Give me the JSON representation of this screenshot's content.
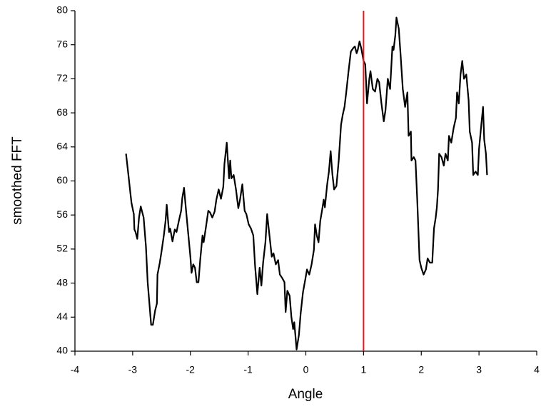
{
  "chart_data": {
    "type": "line",
    "xlabel": "Angle",
    "ylabel": "smoothed FFT",
    "xlim": [
      -4,
      4
    ],
    "xticks": [
      -4,
      -3,
      -2,
      -1,
      0,
      1,
      2,
      3,
      4
    ],
    "ylim": [
      40,
      80
    ],
    "yticks": [
      40,
      44,
      48,
      52,
      56,
      60,
      64,
      68,
      72,
      76,
      80
    ],
    "grid": false,
    "vline": {
      "x": 1,
      "color": "#e8141c"
    },
    "series": [
      {
        "color": "#000000",
        "x": [
          -3.115,
          -3.08,
          -3.04,
          -3.02,
          -2.98,
          -2.97,
          -2.95,
          -2.92,
          -2.89,
          -2.86,
          -2.81,
          -2.77,
          -2.74,
          -2.71,
          -2.68,
          -2.65,
          -2.61,
          -2.58,
          -2.57,
          -2.53,
          -2.5,
          -2.46,
          -2.43,
          -2.41,
          -2.37,
          -2.35,
          -2.31,
          -2.27,
          -2.24,
          -2.2,
          -2.16,
          -2.14,
          -2.11,
          -2.08,
          -2.04,
          -2.0,
          -1.98,
          -1.95,
          -1.92,
          -1.89,
          -1.86,
          -1.83,
          -1.79,
          -1.77,
          -1.73,
          -1.69,
          -1.66,
          -1.62,
          -1.58,
          -1.55,
          -1.51,
          -1.47,
          -1.43,
          -1.41,
          -1.37,
          -1.33,
          -1.31,
          -1.29,
          -1.25,
          -1.21,
          -1.17,
          -1.14,
          -1.1,
          -1.06,
          -1.03,
          -0.99,
          -0.95,
          -0.91,
          -0.88,
          -0.84,
          -0.8,
          -0.77,
          -0.74,
          -0.7,
          -0.67,
          -0.63,
          -0.59,
          -0.56,
          -0.52,
          -0.48,
          -0.45,
          -0.41,
          -0.37,
          -0.35,
          -0.32,
          -0.28,
          -0.25,
          -0.22,
          -0.2,
          -0.16,
          -0.12,
          -0.09,
          -0.05,
          -0.01,
          0.02,
          0.06,
          0.1,
          0.14,
          0.16,
          0.19,
          0.22,
          0.25,
          0.28,
          0.31,
          0.33,
          0.37,
          0.4,
          0.43,
          0.46,
          0.49,
          0.53,
          0.57,
          0.61,
          0.64,
          0.67,
          0.7,
          0.74,
          0.78,
          0.82,
          0.85,
          0.88,
          0.9,
          0.93,
          0.96,
          1.0,
          1.03,
          1.06,
          1.1,
          1.12,
          1.16,
          1.2,
          1.24,
          1.27,
          1.31,
          1.35,
          1.38,
          1.42,
          1.46,
          1.5,
          1.52,
          1.55,
          1.57,
          1.61,
          1.64,
          1.68,
          1.72,
          1.76,
          1.78,
          1.82,
          1.83,
          1.87,
          1.9,
          1.93,
          1.97,
          2.0,
          2.04,
          2.08,
          2.11,
          2.15,
          2.19,
          2.22,
          2.25,
          2.27,
          2.29,
          2.31,
          2.35,
          2.39,
          2.42,
          2.46,
          2.48,
          2.52,
          2.56,
          2.6,
          2.62,
          2.65,
          2.68,
          2.71,
          2.74,
          2.78,
          2.82,
          2.84,
          2.88,
          2.9,
          2.94,
          2.98,
          3.0,
          3.04,
          3.07,
          3.09,
          3.12,
          3.14
        ],
        "values": [
          63.2,
          61.1,
          58.6,
          57.4,
          56.1,
          54.3,
          54.0,
          53.2,
          55.7,
          57.0,
          55.7,
          52.3,
          48.1,
          45.6,
          43.1,
          43.1,
          44.8,
          45.6,
          49.0,
          50.4,
          51.7,
          53.6,
          55.3,
          57.2,
          54.0,
          54.4,
          52.9,
          54.3,
          54.0,
          55.3,
          56.5,
          58.0,
          59.2,
          56.9,
          54.0,
          51.1,
          49.2,
          50.2,
          49.8,
          48.1,
          48.1,
          50.7,
          53.6,
          52.8,
          54.6,
          56.5,
          56.3,
          55.7,
          56.4,
          57.8,
          59.0,
          57.9,
          59.3,
          62.0,
          64.5,
          60.3,
          62.4,
          60.3,
          60.7,
          59.0,
          56.8,
          57.8,
          59.6,
          56.5,
          56.1,
          54.9,
          54.4,
          53.6,
          50.1,
          46.7,
          49.8,
          47.7,
          50.4,
          52.8,
          56.1,
          53.6,
          51.1,
          51.5,
          50.2,
          50.7,
          49.0,
          48.6,
          48.1,
          44.6,
          47.1,
          46.5,
          44.0,
          42.6,
          43.4,
          40.2,
          41.9,
          44.4,
          46.9,
          48.4,
          49.6,
          49.0,
          50.2,
          51.9,
          54.9,
          53.6,
          52.8,
          55.3,
          56.5,
          57.8,
          56.9,
          59.6,
          61.1,
          63.5,
          60.8,
          59.0,
          59.4,
          62.4,
          66.6,
          67.8,
          68.7,
          70.4,
          72.9,
          75.2,
          75.6,
          75.8,
          75.0,
          75.4,
          76.4,
          75.6,
          74.1,
          73.7,
          69.1,
          72.0,
          72.9,
          70.8,
          70.5,
          72.0,
          71.6,
          69.1,
          67.0,
          68.3,
          72.0,
          70.8,
          75.8,
          75.4,
          77.1,
          79.2,
          77.9,
          75.0,
          70.8,
          68.7,
          70.4,
          65.3,
          65.8,
          62.4,
          62.8,
          62.4,
          57.8,
          50.7,
          49.8,
          49.0,
          49.6,
          50.9,
          50.4,
          50.4,
          54.4,
          55.7,
          56.9,
          59.0,
          63.2,
          62.8,
          61.8,
          63.2,
          62.4,
          65.3,
          64.5,
          66.2,
          67.4,
          70.4,
          69.1,
          72.5,
          74.1,
          72.0,
          72.5,
          69.5,
          65.8,
          64.5,
          60.7,
          61.1,
          60.7,
          63.7,
          66.6,
          68.7,
          64.9,
          63.2,
          60.7
        ]
      }
    ]
  }
}
